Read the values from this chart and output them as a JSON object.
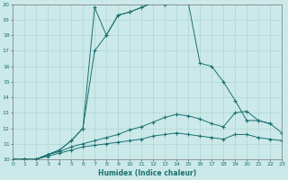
{
  "xlabel": "Humidex (Indice chaleur)",
  "xlim": [
    0,
    23
  ],
  "ylim": [
    10,
    20
  ],
  "background_color": "#cce9e9",
  "grid_color": "#b0d4d4",
  "line_color": "#1a7070",
  "lines": [
    {
      "x": [
        0,
        1,
        2,
        3,
        4,
        5,
        6,
        7,
        8,
        9,
        10,
        11,
        12,
        13,
        14,
        15,
        16,
        17,
        18,
        19,
        20,
        21,
        22
      ],
      "y": [
        10,
        10,
        10,
        10.3,
        10.6,
        11.2,
        12.0,
        19.8,
        18.0,
        19.3,
        19.5,
        19.8,
        20.1,
        20.0,
        20.3,
        20.1,
        16.2,
        16.0,
        15.0,
        13.8,
        12.5,
        12.5,
        12.3
      ]
    },
    {
      "x": [
        0,
        1,
        2,
        3,
        4,
        5,
        6,
        7,
        8,
        9,
        10,
        11,
        12,
        13,
        14,
        15
      ],
      "y": [
        10,
        10,
        10,
        10.3,
        10.6,
        11.2,
        12.0,
        17.0,
        18.0,
        19.3,
        19.5,
        19.8,
        20.1,
        20.0,
        20.3,
        20.1
      ]
    },
    {
      "x": [
        0,
        1,
        2,
        3,
        4,
        5,
        6,
        7,
        8,
        9,
        10,
        11,
        12,
        13,
        14,
        15,
        16,
        17,
        18,
        19,
        20,
        21,
        22,
        23
      ],
      "y": [
        10,
        10,
        10,
        10.3,
        10.5,
        10.8,
        11.0,
        11.2,
        11.4,
        11.6,
        11.9,
        12.1,
        12.4,
        12.7,
        12.9,
        12.8,
        12.6,
        12.3,
        12.1,
        13.0,
        13.1,
        12.5,
        12.3,
        11.7
      ]
    },
    {
      "x": [
        0,
        1,
        2,
        3,
        4,
        5,
        6,
        7,
        8,
        9,
        10,
        11,
        12,
        13,
        14,
        15,
        16,
        17,
        18,
        19,
        20,
        21,
        22,
        23
      ],
      "y": [
        10,
        10,
        10,
        10.2,
        10.4,
        10.6,
        10.8,
        10.9,
        11.0,
        11.1,
        11.2,
        11.3,
        11.5,
        11.6,
        11.7,
        11.6,
        11.5,
        11.4,
        11.3,
        11.6,
        11.6,
        11.4,
        11.3,
        11.2
      ]
    }
  ]
}
